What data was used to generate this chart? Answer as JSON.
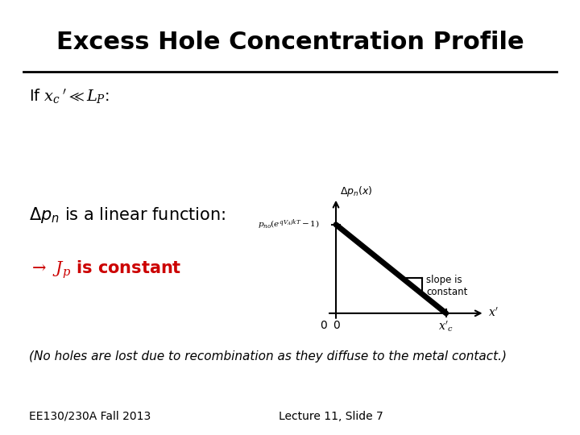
{
  "title": "Excess Hole Concentration Profile",
  "title_fontsize": 22,
  "title_fontweight": "bold",
  "background_color": "#ffffff",
  "condition_text": "If $x_c\\,' \\ll L_P$:",
  "condition_fontsize": 14,
  "linear_fontsize": 15,
  "jp_fontsize": 15,
  "jp_color": "#cc0000",
  "note_text": "(No holes are lost due to recombination as they diffuse to the metal contact.)",
  "note_fontsize": 11,
  "footer_left": "EE130/230A Fall 2013",
  "footer_right": "Lecture 11, Slide 7",
  "footer_fontsize": 10,
  "slope_label": "slope is\nconstant",
  "yaxis_label": "$\\Delta p_n(x)$",
  "xaxis_label": "$x'$",
  "pno_label": "$p_{no}(e^{qV_A/kT}-1)$",
  "xc_label": "$x'_c$",
  "origin_label": "0"
}
